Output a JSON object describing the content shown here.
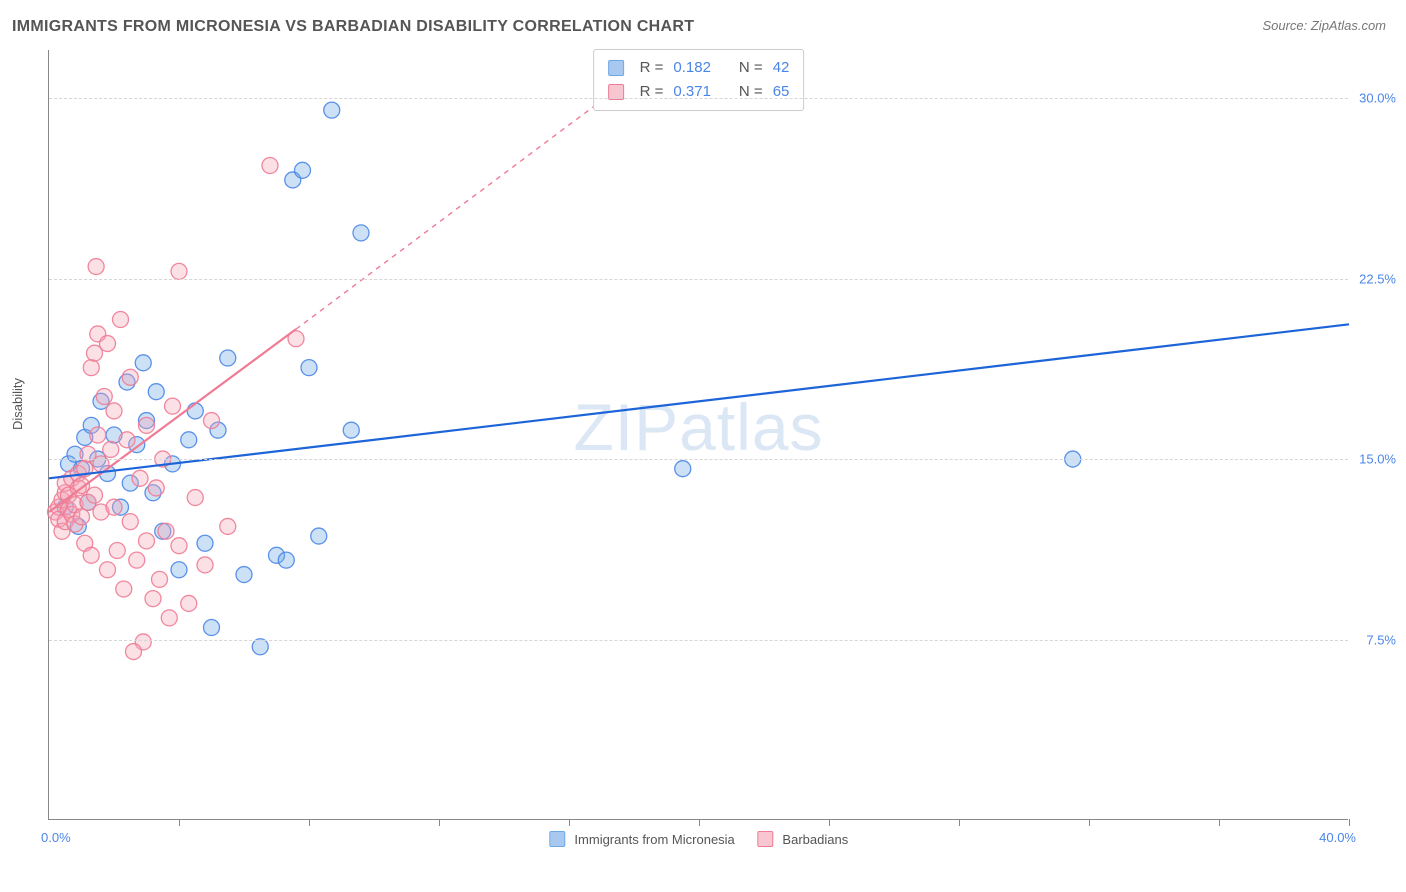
{
  "title": "IMMIGRANTS FROM MICRONESIA VS BARBADIAN DISABILITY CORRELATION CHART",
  "source": "Source: ZipAtlas.com",
  "ylabel": "Disability",
  "watermark": "ZIPatlas",
  "chart": {
    "type": "scatter",
    "xlim": [
      0,
      40
    ],
    "ylim": [
      0,
      32
    ],
    "xmin_label": "0.0%",
    "xmax_label": "40.0%",
    "yticks": [
      7.5,
      15.0,
      22.5,
      30.0
    ],
    "ytick_labels": [
      "7.5%",
      "15.0%",
      "22.5%",
      "30.0%"
    ],
    "xtick_positions": [
      4,
      8,
      12,
      16,
      20,
      24,
      28,
      32,
      36,
      40
    ],
    "grid_color": "#d6d6d6",
    "background_color": "#ffffff",
    "marker_radius": 8,
    "marker_fill_opacity": 0.35,
    "marker_stroke_opacity": 0.9,
    "series": [
      {
        "name": "Immigrants from Micronesia",
        "color": "#6fa8e6",
        "stroke": "#4a86e8",
        "R": 0.182,
        "N": 42,
        "trendline": {
          "x1": 0,
          "y1": 14.2,
          "x2": 40,
          "y2": 20.6,
          "dash": "none",
          "width": 2.2
        },
        "points": [
          [
            0.5,
            13.0
          ],
          [
            0.6,
            14.8
          ],
          [
            0.8,
            15.2
          ],
          [
            0.9,
            12.2
          ],
          [
            1.0,
            14.6
          ],
          [
            1.1,
            15.9
          ],
          [
            1.2,
            13.2
          ],
          [
            1.3,
            16.4
          ],
          [
            1.5,
            15.0
          ],
          [
            1.6,
            17.4
          ],
          [
            1.8,
            14.4
          ],
          [
            2.0,
            16.0
          ],
          [
            2.2,
            13.0
          ],
          [
            2.4,
            18.2
          ],
          [
            2.5,
            14.0
          ],
          [
            2.7,
            15.6
          ],
          [
            3.0,
            16.6
          ],
          [
            3.2,
            13.6
          ],
          [
            3.3,
            17.8
          ],
          [
            3.5,
            12.0
          ],
          [
            3.8,
            14.8
          ],
          [
            4.0,
            10.4
          ],
          [
            4.3,
            15.8
          ],
          [
            4.5,
            17.0
          ],
          [
            5.0,
            8.0
          ],
          [
            5.2,
            16.2
          ],
          [
            5.5,
            19.2
          ],
          [
            6.0,
            10.2
          ],
          [
            6.5,
            7.2
          ],
          [
            7.0,
            11.0
          ],
          [
            7.3,
            10.8
          ],
          [
            7.5,
            26.6
          ],
          [
            7.8,
            27.0
          ],
          [
            8.0,
            18.8
          ],
          [
            8.3,
            11.8
          ],
          [
            8.7,
            29.5
          ],
          [
            9.3,
            16.2
          ],
          [
            9.6,
            24.4
          ],
          [
            19.5,
            14.6
          ],
          [
            31.5,
            15.0
          ],
          [
            4.8,
            11.5
          ],
          [
            2.9,
            19.0
          ]
        ]
      },
      {
        "name": "Barbadians",
        "color": "#f4a6b8",
        "stroke": "#ef7b94",
        "R": 0.371,
        "N": 65,
        "trendline_solid": {
          "x1": 0,
          "y1": 12.8,
          "x2": 7.6,
          "y2": 20.4,
          "width": 2.2
        },
        "trendline_dash": {
          "x1": 7.6,
          "y1": 20.4,
          "x2": 17.5,
          "y2": 30.4,
          "dash": "5,5",
          "width": 1.4
        },
        "points": [
          [
            0.2,
            12.8
          ],
          [
            0.3,
            13.0
          ],
          [
            0.3,
            12.5
          ],
          [
            0.4,
            13.3
          ],
          [
            0.4,
            12.0
          ],
          [
            0.5,
            13.6
          ],
          [
            0.5,
            12.4
          ],
          [
            0.5,
            14.0
          ],
          [
            0.6,
            12.9
          ],
          [
            0.6,
            13.5
          ],
          [
            0.7,
            12.7
          ],
          [
            0.7,
            14.2
          ],
          [
            0.8,
            13.1
          ],
          [
            0.8,
            12.3
          ],
          [
            0.9,
            13.8
          ],
          [
            0.9,
            14.4
          ],
          [
            1.0,
            12.6
          ],
          [
            1.0,
            13.9
          ],
          [
            1.1,
            11.5
          ],
          [
            1.1,
            14.6
          ],
          [
            1.2,
            13.2
          ],
          [
            1.2,
            15.2
          ],
          [
            1.3,
            18.8
          ],
          [
            1.3,
            11.0
          ],
          [
            1.4,
            19.4
          ],
          [
            1.4,
            13.5
          ],
          [
            1.5,
            16.0
          ],
          [
            1.5,
            20.2
          ],
          [
            1.6,
            12.8
          ],
          [
            1.6,
            14.8
          ],
          [
            1.7,
            17.6
          ],
          [
            1.8,
            19.8
          ],
          [
            1.8,
            10.4
          ],
          [
            1.9,
            15.4
          ],
          [
            2.0,
            13.0
          ],
          [
            2.0,
            17.0
          ],
          [
            2.1,
            11.2
          ],
          [
            2.2,
            20.8
          ],
          [
            2.3,
            9.6
          ],
          [
            2.4,
            15.8
          ],
          [
            2.5,
            12.4
          ],
          [
            2.5,
            18.4
          ],
          [
            2.7,
            10.8
          ],
          [
            2.8,
            14.2
          ],
          [
            2.9,
            7.4
          ],
          [
            3.0,
            11.6
          ],
          [
            3.0,
            16.4
          ],
          [
            3.2,
            9.2
          ],
          [
            3.3,
            13.8
          ],
          [
            3.4,
            10.0
          ],
          [
            3.5,
            15.0
          ],
          [
            3.7,
            8.4
          ],
          [
            3.8,
            17.2
          ],
          [
            4.0,
            11.4
          ],
          [
            4.0,
            22.8
          ],
          [
            4.3,
            9.0
          ],
          [
            4.5,
            13.4
          ],
          [
            4.8,
            10.6
          ],
          [
            5.0,
            16.6
          ],
          [
            5.5,
            12.2
          ],
          [
            6.8,
            27.2
          ],
          [
            7.6,
            20.0
          ],
          [
            2.6,
            7.0
          ],
          [
            3.6,
            12.0
          ],
          [
            1.45,
            23.0
          ]
        ]
      }
    ]
  },
  "bottom_legend": [
    {
      "label": "Immigrants from Micronesia",
      "fill": "#a9c8ef",
      "stroke": "#6fa8e6"
    },
    {
      "label": "Barbadians",
      "fill": "#f7c6d1",
      "stroke": "#ef7b94"
    }
  ],
  "stats_box": {
    "rows": [
      {
        "swatch_fill": "#a9c8ef",
        "swatch_stroke": "#6fa8e6",
        "R_label": "R =",
        "R": "0.182",
        "N_label": "N =",
        "N": "42"
      },
      {
        "swatch_fill": "#f7c6d1",
        "swatch_stroke": "#ef7b94",
        "R_label": "R =",
        "R": "0.371",
        "N_label": "N =",
        "N": "65"
      }
    ]
  }
}
